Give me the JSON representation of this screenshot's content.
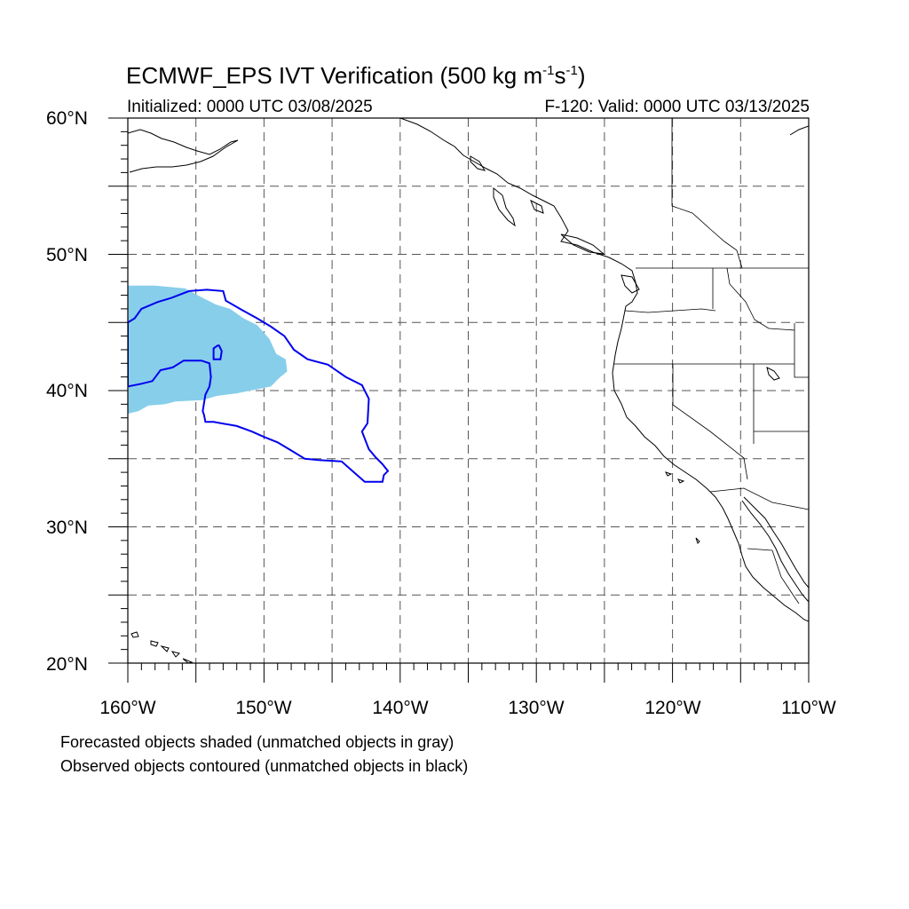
{
  "title": {
    "main": "ECMWF_EPS IVT Verification (500 kg m",
    "sup1": "-1",
    "mid": "s",
    "sup2": "-1",
    "end": ")"
  },
  "initialized": "Initialized: 0000 UTC 03/08/2025",
  "valid": "F-120: Valid: 0000 UTC 03/13/2025",
  "lat_labels": [
    "60°N",
    "50°N",
    "40°N",
    "30°N",
    "20°N"
  ],
  "lon_labels": [
    "160°W",
    "150°W",
    "140°W",
    "130°W",
    "120°W",
    "110°W"
  ],
  "notes": [
    "Forecasted objects shaded (unmatched objects in gray)",
    "Observed objects contoured (unmatched objects in black)"
  ],
  "map": {
    "lon_range": [
      -160,
      -110
    ],
    "lat_range": [
      20,
      60
    ],
    "forecast_color": "#87ceeb",
    "observed_color": "#0000ee",
    "forecast_object": [
      [
        -160,
        38.3
      ],
      [
        -159.2,
        38.5
      ],
      [
        -158.5,
        38.9
      ],
      [
        -157.3,
        39.0
      ],
      [
        -156.5,
        39.2
      ],
      [
        -154.5,
        39.3
      ],
      [
        -153.5,
        39.6
      ],
      [
        -152,
        39.8
      ],
      [
        -150.5,
        40.1
      ],
      [
        -149.5,
        40.3
      ],
      [
        -148.8,
        41.0
      ],
      [
        -148.3,
        41.4
      ],
      [
        -148.4,
        42.3
      ],
      [
        -149.1,
        42.7
      ],
      [
        -149.6,
        43.8
      ],
      [
        -150.5,
        44.8
      ],
      [
        -151.5,
        45.3
      ],
      [
        -152.5,
        46.0
      ],
      [
        -153.5,
        46.3
      ],
      [
        -154.5,
        46.8
      ],
      [
        -155.8,
        47.5
      ],
      [
        -158,
        47.7
      ],
      [
        -160,
        47.7
      ]
    ],
    "observed_object": [
      [
        -160,
        45.0
      ],
      [
        -159.5,
        45.3
      ],
      [
        -159.0,
        46.0
      ],
      [
        -157.8,
        46.5
      ],
      [
        -156.8,
        46.8
      ],
      [
        -155.5,
        47.3
      ],
      [
        -154.2,
        47.4
      ],
      [
        -153.0,
        47.3
      ],
      [
        -152.8,
        46.6
      ],
      [
        -151.6,
        45.9
      ],
      [
        -150.5,
        45.3
      ],
      [
        -149.5,
        44.7
      ],
      [
        -148.5,
        44.0
      ],
      [
        -147.8,
        43.0
      ],
      [
        -146.8,
        42.3
      ],
      [
        -145.3,
        41.9
      ],
      [
        -144.0,
        41.0
      ],
      [
        -142.8,
        40.4
      ],
      [
        -142.3,
        39.4
      ],
      [
        -142.4,
        37.6
      ],
      [
        -142.8,
        37.0
      ],
      [
        -142.3,
        35.7
      ],
      [
        -141.8,
        35.1
      ],
      [
        -141.3,
        34.6
      ],
      [
        -140.9,
        34.1
      ],
      [
        -141.2,
        33.8
      ],
      [
        -141.3,
        33.3
      ],
      [
        -142.6,
        33.3
      ],
      [
        -143.5,
        34.1
      ],
      [
        -144.3,
        34.8
      ],
      [
        -146.0,
        34.9
      ],
      [
        -147.0,
        35.0
      ],
      [
        -148.0,
        35.6
      ],
      [
        -149.0,
        36.2
      ],
      [
        -150.0,
        36.6
      ],
      [
        -150.9,
        37.0
      ],
      [
        -152.0,
        37.4
      ],
      [
        -153.7,
        37.7
      ],
      [
        -154.3,
        37.7
      ],
      [
        -154.4,
        38.2
      ],
      [
        -154.5,
        38.5
      ],
      [
        -154.3,
        39.7
      ],
      [
        -154.0,
        40.3
      ],
      [
        -153.9,
        41.0
      ],
      [
        -154.0,
        42.0
      ],
      [
        -154.6,
        42.2
      ],
      [
        -155.9,
        42.2
      ],
      [
        -156.7,
        41.7
      ],
      [
        -157.6,
        41.5
      ],
      [
        -158.2,
        40.7
      ],
      [
        -159.0,
        40.5
      ],
      [
        -160,
        40.3
      ]
    ],
    "observed_inner": [
      [
        -153.3,
        43.3
      ],
      [
        -153.1,
        42.9
      ],
      [
        -153.2,
        42.3
      ],
      [
        -153.7,
        42.3
      ],
      [
        -153.7,
        43.1
      ],
      [
        -153.4,
        43.3
      ]
    ]
  }
}
